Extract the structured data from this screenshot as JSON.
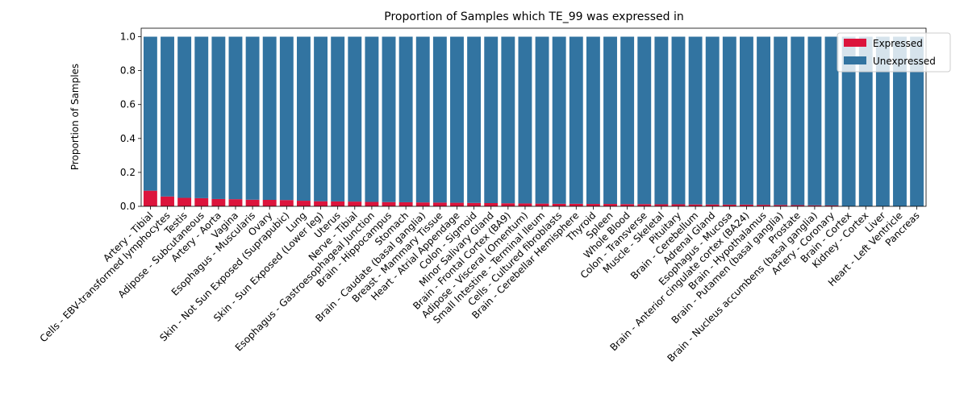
{
  "chart_data": {
    "type": "bar",
    "stacked": true,
    "title": "Proportion of Samples which TE_99 was expressed in",
    "xlabel": "",
    "ylabel": "Proportion of Samples",
    "ylim": [
      0,
      1.05
    ],
    "yticks": [
      "0.0",
      "0.2",
      "0.4",
      "0.6",
      "0.8",
      "1.0"
    ],
    "legend_position": "top-right",
    "grid": false,
    "categories": [
      "Artery - Tibial",
      "Cells - EBV-transformed lymphocytes",
      "Testis",
      "Adipose - Subcutaneous",
      "Artery - Aorta",
      "Vagina",
      "Esophagus - Muscularis",
      "Ovary",
      "Skin - Not Sun Exposed (Suprapubic)",
      "Lung",
      "Skin - Sun Exposed (Lower leg)",
      "Uterus",
      "Nerve - Tibial",
      "Esophagus - Gastroesophageal Junction",
      "Brain - Hippocampus",
      "Stomach",
      "Brain - Caudate (basal ganglia)",
      "Breast - Mammary Tissue",
      "Heart - Atrial Appendage",
      "Colon - Sigmoid",
      "Minor Salivary Gland",
      "Brain - Frontal Cortex (BA9)",
      "Adipose - Visceral (Omentum)",
      "Small Intestine - Terminal Ileum",
      "Cells - Cultured fibroblasts",
      "Brain - Cerebellar Hemisphere",
      "Thyroid",
      "Spleen",
      "Whole Blood",
      "Colon - Transverse",
      "Muscle - Skeletal",
      "Pituitary",
      "Brain - Cerebellum",
      "Adrenal Gland",
      "Esophagus - Mucosa",
      "Brain - Anterior cingulate cortex (BA24)",
      "Brain - Hypothalamus",
      "Brain - Putamen (basal ganglia)",
      "Prostate",
      "Brain - Nucleus accumbens (basal ganglia)",
      "Artery - Coronary",
      "Brain - Cortex",
      "Kidney - Cortex",
      "Liver",
      "Heart - Left Ventricle",
      "Pancreas"
    ],
    "series": [
      {
        "name": "Expressed",
        "color": "#dc143c",
        "values": [
          0.092,
          0.058,
          0.05,
          0.048,
          0.043,
          0.042,
          0.039,
          0.038,
          0.037,
          0.033,
          0.03,
          0.029,
          0.028,
          0.026,
          0.025,
          0.024,
          0.023,
          0.022,
          0.021,
          0.02,
          0.019,
          0.018,
          0.017,
          0.016,
          0.015,
          0.015,
          0.014,
          0.014,
          0.013,
          0.013,
          0.012,
          0.012,
          0.011,
          0.011,
          0.01,
          0.01,
          0.009,
          0.008,
          0.007,
          0.006,
          0.005,
          0,
          0,
          0,
          0,
          0
        ]
      },
      {
        "name": "Unexpressed",
        "color": "#3274a1",
        "values": [
          0.908,
          0.942,
          0.95,
          0.952,
          0.957,
          0.958,
          0.961,
          0.962,
          0.963,
          0.967,
          0.97,
          0.971,
          0.972,
          0.974,
          0.975,
          0.976,
          0.977,
          0.978,
          0.979,
          0.98,
          0.981,
          0.982,
          0.983,
          0.984,
          0.985,
          0.985,
          0.986,
          0.986,
          0.987,
          0.987,
          0.988,
          0.988,
          0.989,
          0.989,
          0.99,
          0.99,
          0.991,
          0.992,
          0.993,
          0.994,
          0.995,
          1,
          1,
          1,
          1,
          1
        ]
      }
    ]
  }
}
